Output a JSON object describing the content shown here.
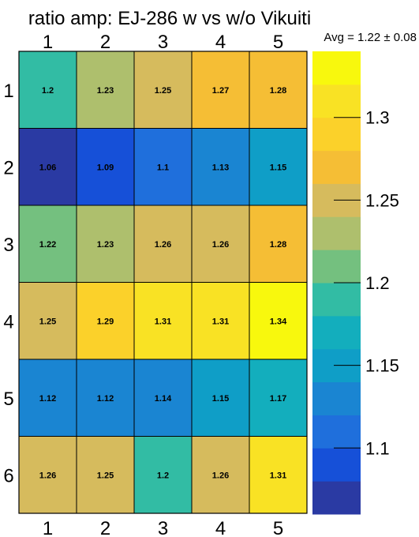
{
  "chart_data": {
    "type": "heatmap",
    "title": "ratio amp: EJ-286 w vs w/o Vikuiti",
    "annotation": "Avg = 1.22 ± 0.08",
    "columns": [
      "1",
      "2",
      "3",
      "4",
      "5"
    ],
    "rows": [
      "1",
      "2",
      "3",
      "4",
      "5",
      "6"
    ],
    "values": [
      [
        1.2,
        1.23,
        1.25,
        1.27,
        1.28
      ],
      [
        1.06,
        1.09,
        1.1,
        1.13,
        1.15
      ],
      [
        1.22,
        1.23,
        1.26,
        1.26,
        1.28
      ],
      [
        1.25,
        1.29,
        1.31,
        1.31,
        1.34
      ],
      [
        1.12,
        1.12,
        1.14,
        1.15,
        1.17
      ],
      [
        1.26,
        1.25,
        1.2,
        1.26,
        1.31
      ]
    ],
    "value_labels": [
      [
        "1.2",
        "1.23",
        "1.25",
        "1.27",
        "1.28"
      ],
      [
        "1.06",
        "1.09",
        "1.1",
        "1.13",
        "1.15"
      ],
      [
        "1.22",
        "1.23",
        "1.26",
        "1.26",
        "1.28"
      ],
      [
        "1.25",
        "1.29",
        "1.31",
        "1.31",
        "1.34"
      ],
      [
        "1.12",
        "1.12",
        "1.14",
        "1.15",
        "1.17"
      ],
      [
        "1.26",
        "1.25",
        "1.2",
        "1.26",
        "1.31"
      ]
    ],
    "zlim": [
      1.06,
      1.34
    ],
    "colorbar_ticks": [
      1.1,
      1.15,
      1.2,
      1.25,
      1.3
    ],
    "colorbar_tick_labels": [
      "1.1",
      "1.15",
      "1.2",
      "1.25",
      "1.3"
    ],
    "colormap": [
      "#2a3aa3",
      "#1650d8",
      "#1f6fdc",
      "#1a85d2",
      "#0f9ec7",
      "#13aebd",
      "#32bca4",
      "#74c07f",
      "#aebf6d",
      "#d6bb5d",
      "#f5be35",
      "#fbd12a",
      "#f9e224",
      "#f8f80d"
    ],
    "grid_line_color": "#000000"
  }
}
